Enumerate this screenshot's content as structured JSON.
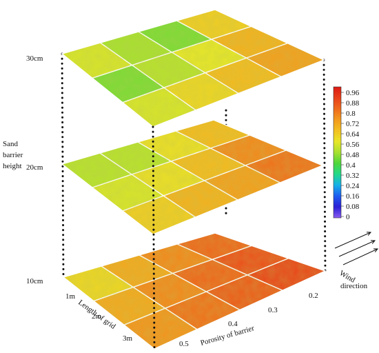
{
  "chart_data": {
    "type": "heatmap",
    "title": "",
    "z_axis": {
      "label_lines": [
        "Sand",
        "barrier",
        "height"
      ],
      "levels": [
        "10cm",
        "20cm",
        "30cm"
      ]
    },
    "grid_length_axis": {
      "label": "Length of grid",
      "ticks": [
        "1m",
        "2m",
        "3m"
      ]
    },
    "porosity_axis": {
      "label": "Porosity of barrier",
      "ticks": [
        "0.5",
        "0.4",
        "0.3",
        "0.2"
      ]
    },
    "colorbar": {
      "min": 0,
      "max": 1,
      "ticks": [
        "0.96",
        "0.88",
        "0.8",
        "0.72",
        "0.64",
        "0.56",
        "0.48",
        "0.4",
        "0.32",
        "0.24",
        "0.16",
        "0.08",
        "0"
      ],
      "colors": [
        "#8a5cf0",
        "#2a1fd6",
        "#1d5cf0",
        "#16b0e8",
        "#22d88a",
        "#4ed63a",
        "#a8e030",
        "#e8e628",
        "#f2c020",
        "#f29a1e",
        "#ee6a1c",
        "#e8401a",
        "#dc1a14"
      ]
    },
    "wind": {
      "label_lines": [
        "Wind",
        "direction"
      ]
    },
    "layers": [
      {
        "height": "30cm",
        "values": [
          [
            0.64,
            0.46,
            0.5,
            0.56
          ],
          [
            0.7,
            0.58,
            0.52,
            0.46
          ],
          [
            0.74,
            0.68,
            0.62,
            0.56
          ]
        ]
      },
      {
        "height": "20cm",
        "values": [
          [
            0.68,
            0.6,
            0.52,
            0.52
          ],
          [
            0.78,
            0.68,
            0.6,
            0.56
          ],
          [
            0.82,
            0.74,
            0.7,
            0.64
          ]
        ]
      },
      {
        "height": "10cm",
        "values": [
          [
            0.84,
            0.78,
            0.72,
            0.62
          ],
          [
            0.88,
            0.84,
            0.78,
            0.72
          ],
          [
            0.9,
            0.86,
            0.82,
            0.76
          ]
        ]
      }
    ]
  }
}
